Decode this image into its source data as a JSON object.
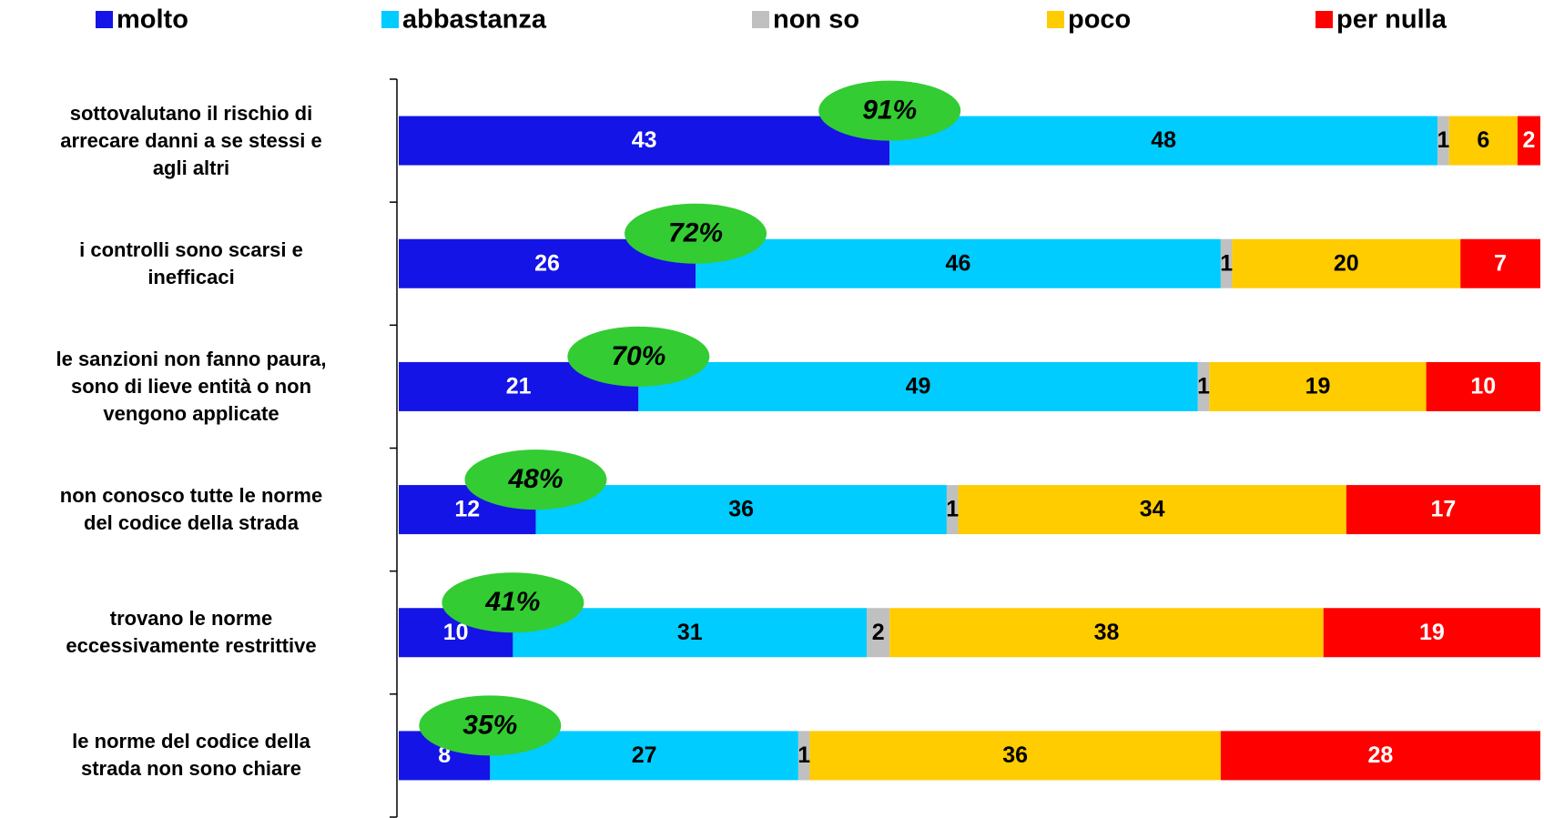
{
  "chart_data": {
    "type": "stacked-bar-horizontal",
    "categories": [
      "sottovalutano il rischio di\narrecare danni a se stessi e\nagli altri",
      "i controlli sono scarsi e\ninefficaci",
      "le sanzioni non fanno paura,\nsono di lieve entità o non\nvengono applicate",
      "non conosco tutte le norme\ndel codice della strada",
      "trovano le norme\neccessivamente restrittive",
      "le norme del codice della\nstrada non sono chiare"
    ],
    "series": [
      {
        "name": "molto",
        "color": "#1414e6",
        "values": [
          43,
          26,
          21,
          12,
          10,
          8
        ]
      },
      {
        "name": "abbastanza",
        "color": "#00ccff",
        "values": [
          48,
          46,
          49,
          36,
          31,
          27
        ]
      },
      {
        "name": "non so",
        "color": "#c0c0c0",
        "values": [
          1,
          1,
          1,
          1,
          2,
          1
        ]
      },
      {
        "name": "poco",
        "color": "#ffcc00",
        "values": [
          6,
          20,
          19,
          34,
          38,
          36
        ]
      },
      {
        "name": "per nulla",
        "color": "#ff0000",
        "values": [
          2,
          7,
          10,
          17,
          19,
          28
        ]
      }
    ],
    "totals": {
      "color": "#33cc33",
      "values": [
        91,
        72,
        70,
        48,
        41,
        35
      ],
      "value_labels": [
        "91%",
        "72%",
        "70%",
        "48%",
        "41%",
        "35%"
      ]
    },
    "xlim": [
      0,
      100
    ],
    "legend": "top"
  }
}
